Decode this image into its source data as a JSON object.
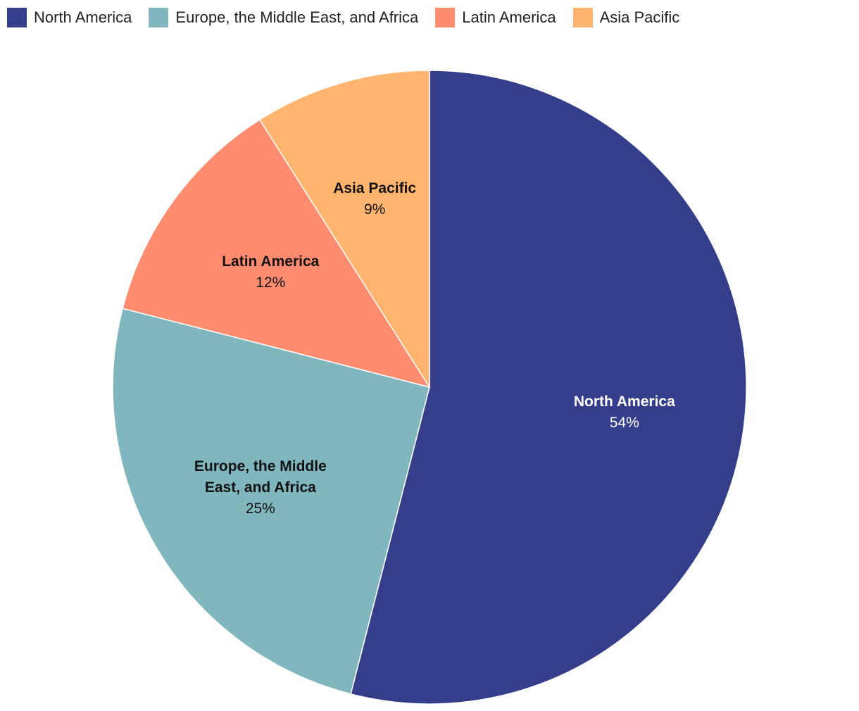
{
  "chart_data": {
    "type": "pie",
    "title": "",
    "legend_position": "top-left",
    "slices": [
      {
        "name": "North America",
        "label_lines": [
          "North America"
        ],
        "value": 54,
        "value_label": "54%",
        "color": "#343E8A",
        "label_color": "#ffffff"
      },
      {
        "name": "Europe, the Middle East, and Africa",
        "label_lines": [
          "Europe, the Middle",
          "East, and Africa"
        ],
        "value": 25,
        "value_label": "25%",
        "color": "#80B7BF",
        "label_color": "#111111"
      },
      {
        "name": "Latin America",
        "label_lines": [
          "Latin America"
        ],
        "value": 12,
        "value_label": "12%",
        "color": "#FF8C6E",
        "label_color": "#111111"
      },
      {
        "name": "Asia Pacific",
        "label_lines": [
          "Asia Pacific"
        ],
        "value": 9,
        "value_label": "9%",
        "color": "#FFB56E",
        "label_color": "#111111"
      }
    ]
  }
}
